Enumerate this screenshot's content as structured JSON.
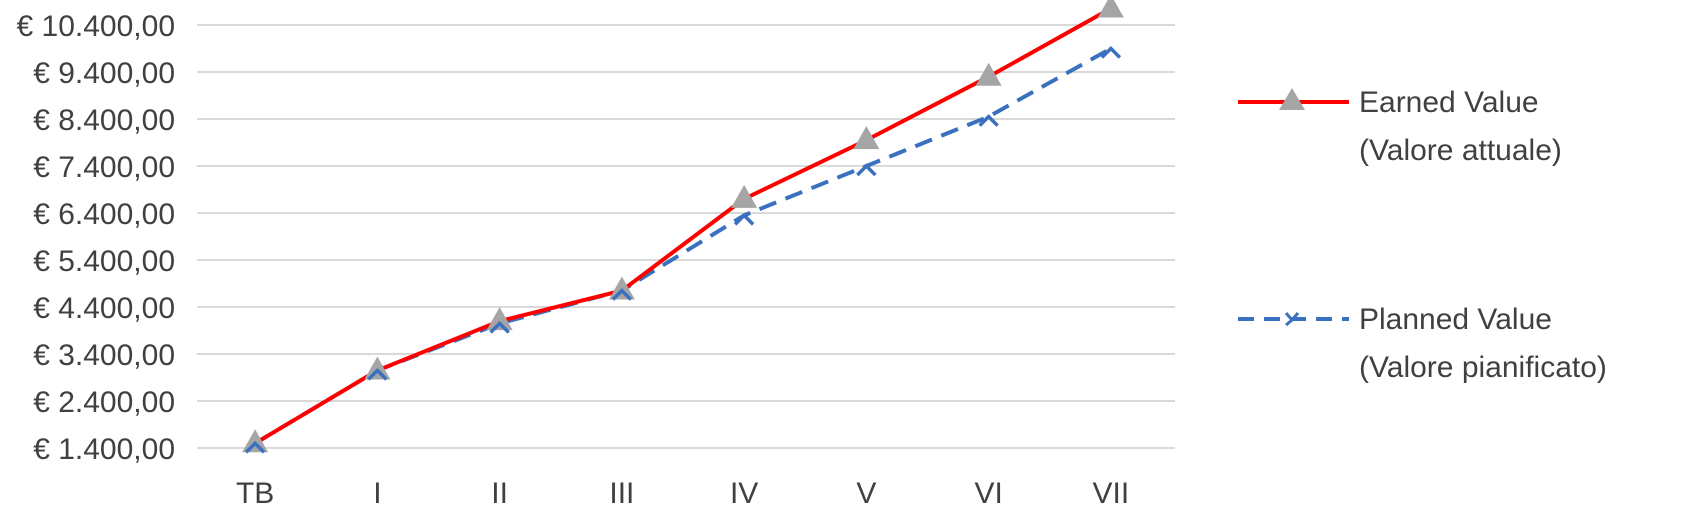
{
  "chart_data": {
    "type": "line",
    "categories": [
      "TB",
      "I",
      "II",
      "III",
      "IV",
      "V",
      "VI",
      "VII"
    ],
    "y_tick_labels": [
      "€ 10.400,00",
      "€ 9.400,00",
      "€ 8.400,00",
      "€ 7.400,00",
      "€ 6.400,00",
      "€ 5.400,00",
      "€ 4.400,00",
      "€ 3.400,00",
      "€ 2.400,00",
      "€ 1.400,00"
    ],
    "y_ticks": [
      10400,
      9400,
      8400,
      7400,
      6400,
      5400,
      4400,
      3400,
      2400,
      1400
    ],
    "ylim": [
      1400,
      10400
    ],
    "grid": true,
    "legend_position": "right",
    "series": [
      {
        "name_line1": "Earned Value",
        "name_line2": "(Valore attuale)",
        "values": [
          1500,
          3050,
          4100,
          4750,
          6700,
          7950,
          9300,
          10750
        ],
        "color": "#ff0000",
        "line_style": "solid",
        "marker": "triangle",
        "marker_color": "#a5a5a5"
      },
      {
        "name_line1": "Planned Value",
        "name_line2": "(Valore pianificato)",
        "values": [
          1500,
          3050,
          4050,
          4750,
          6350,
          7400,
          8450,
          9900
        ],
        "color": "#3a70c0",
        "line_style": "dashed",
        "marker": "x",
        "marker_color": "#3a70c0"
      }
    ]
  }
}
